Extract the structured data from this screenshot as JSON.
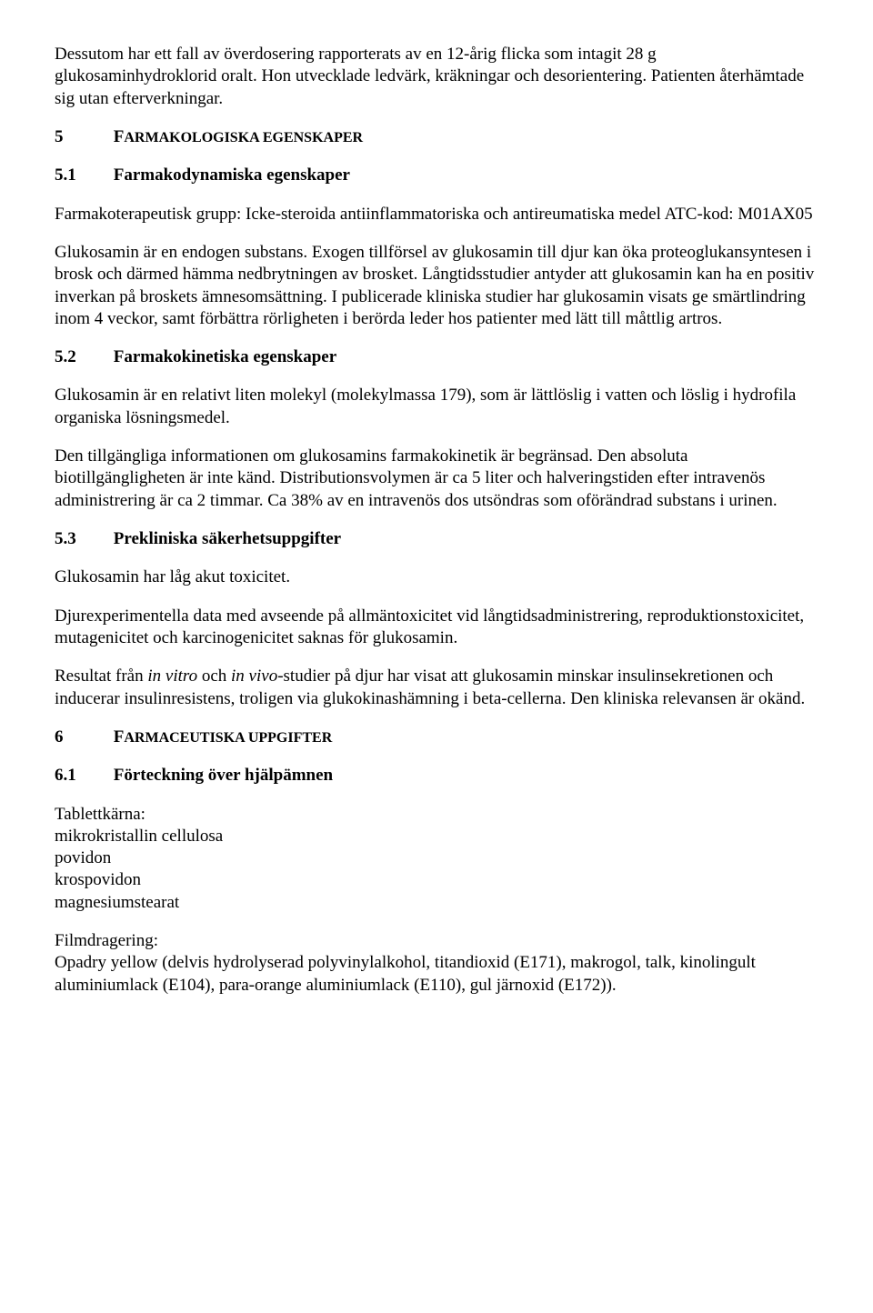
{
  "intro": {
    "p1": "Dessutom har ett fall av överdosering rapporterats av en 12-årig flicka som intagit 28 g glukosaminhydroklorid oralt. Hon utvecklade ledvärk, kräkningar och desorientering. Patienten återhämtade sig utan efterverkningar."
  },
  "s5": {
    "num": "5",
    "title_prefix": "F",
    "title_rest": "ARMAKOLOGISKA EGENSKAPER",
    "s51": {
      "num": "5.1",
      "title": "Farmakodynamiska egenskaper",
      "p1": "Farmakoterapeutisk grupp: Icke-steroida antiinflammatoriska och antireumatiska medel ATC-kod: M01AX05",
      "p2": "Glukosamin är en endogen substans. Exogen tillförsel av glukosamin till djur kan öka proteoglukansyntesen i brosk och därmed hämma nedbrytningen av brosket. Långtidsstudier antyder att glukosamin kan ha en positiv inverkan på broskets ämnesomsättning. I publicerade kliniska studier har glukosamin visats ge smärtlindring inom 4 veckor, samt förbättra rörligheten i berörda leder hos patienter med lätt till måttlig artros."
    },
    "s52": {
      "num": "5.2",
      "title": "Farmakokinetiska egenskaper",
      "p1": "Glukosamin är en relativt liten molekyl (molekylmassa 179), som är lättlöslig i vatten och löslig i hydrofila organiska lösningsmedel.",
      "p2": "Den tillgängliga informationen om glukosamins farmakokinetik är begränsad. Den absoluta biotillgängligheten är inte känd. Distributionsvolymen är ca 5 liter och halveringstiden efter intravenös administrering är ca 2 timmar. Ca 38% av en intravenös dos utsöndras som oförändrad substans i urinen."
    },
    "s53": {
      "num": "5.3",
      "title": "Prekliniska säkerhetsuppgifter",
      "p1": "Glukosamin har låg akut toxicitet.",
      "p2": "Djurexperimentella data med avseende på allmäntoxicitet vid långtidsadministrering, reproduktionstoxicitet, mutagenicitet och karcinogenicitet saknas för glukosamin.",
      "p3a": "Resultat från ",
      "p3b": "in vitro",
      "p3c": " och ",
      "p3d": "in vivo",
      "p3e": "-studier på djur har visat att glukosamin minskar insulinsekretionen och inducerar insulinresistens, troligen via glukokinashämning i beta-cellerna. Den kliniska relevansen är okänd."
    }
  },
  "s6": {
    "num": "6",
    "title_prefix": "F",
    "title_rest": "ARMACEUTISKA UPPGIFTER",
    "s61": {
      "num": "6.1",
      "title": "Förteckning över hjälpämnen",
      "core_label": "Tablettkärna:",
      "core1": "mikrokristallin cellulosa",
      "core2": "povidon",
      "core3": "krospovidon",
      "core4": "magnesiumstearat",
      "film_label": "Filmdragering:",
      "film1": "Opadry yellow (delvis hydrolyserad polyvinylalkohol, titandioxid (E171), makrogol, talk, kinolingult aluminiumlack (E104), para-orange aluminiumlack (E110), gul järnoxid (E172))."
    }
  }
}
